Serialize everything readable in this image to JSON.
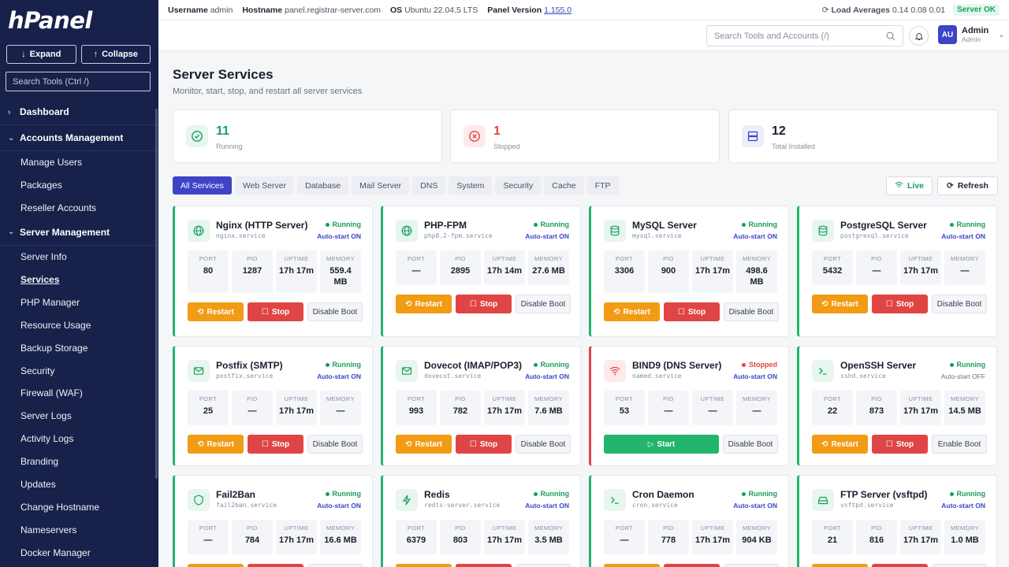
{
  "sidebar": {
    "logo": "hPanel",
    "expand_label": "Expand",
    "collapse_label": "Collapse",
    "search_placeholder": "Search Tools (Ctrl /)",
    "groups": [
      {
        "label": "Dashboard",
        "expanded": false
      },
      {
        "label": "Accounts Management",
        "expanded": true
      },
      {
        "label": "Server Management",
        "expanded": true
      }
    ],
    "accounts_items": [
      "Manage Users",
      "Packages",
      "Reseller Accounts"
    ],
    "server_items": [
      "Server Info",
      "Services",
      "PHP Manager",
      "Resource Usage",
      "Backup Storage",
      "Security",
      "Firewall (WAF)",
      "Server Logs",
      "Activity Logs",
      "Branding",
      "Updates",
      "Change Hostname",
      "Nameservers",
      "Docker Manager"
    ],
    "active_item": "Services"
  },
  "topbar": {
    "username_label": "Username",
    "username": "admin",
    "hostname_label": "Hostname",
    "hostname": "panel.registrar-server.com",
    "os_label": "OS",
    "os": "Ubuntu 22.04.5 LTS",
    "version_label": "Panel Version",
    "version": "1.155.0",
    "load_label": "Load Averages",
    "load": "0.14 0.08 0.01",
    "server_status": "Server OK"
  },
  "header": {
    "search_placeholder": "Search Tools and Accounts (/)",
    "avatar": "AU",
    "user_name": "Admin",
    "user_role": "Admin"
  },
  "page": {
    "title": "Server Services",
    "subtitle": "Monitor, start, stop, and restart all server services"
  },
  "stats": [
    {
      "value": "11",
      "label": "Running",
      "color": "#19a05a"
    },
    {
      "value": "1",
      "label": "Stopped",
      "color": "#e04545"
    },
    {
      "value": "12",
      "label": "Total Installed",
      "color": "#1a1f2e"
    }
  ],
  "filters": [
    "All Services",
    "Web Server",
    "Database",
    "Mail Server",
    "DNS",
    "System",
    "Security",
    "Cache",
    "FTP"
  ],
  "live_label": "Live",
  "refresh_label": "Refresh",
  "metric_labels": {
    "port": "PORT",
    "pid": "PID",
    "uptime": "UPTIME",
    "memory": "MEMORY"
  },
  "action_labels": {
    "restart": "Restart",
    "stop": "Stop",
    "start": "Start",
    "disable_boot": "Disable Boot",
    "enable_boot": "Enable Boot"
  },
  "services": [
    {
      "name": "Nginx (HTTP Server)",
      "unit": "nginx.service",
      "status": "Running",
      "autostart": "Auto-start ON",
      "icon": "globe-icon",
      "port": "80",
      "pid": "1287",
      "uptime": "17h 17m",
      "memory": "559.4 MB"
    },
    {
      "name": "PHP-FPM",
      "unit": "php8.2-fpm.service",
      "status": "Running",
      "autostart": "Auto-start ON",
      "icon": "globe-icon",
      "port": "—",
      "pid": "2895",
      "uptime": "17h 14m",
      "memory": "27.6 MB"
    },
    {
      "name": "MySQL Server",
      "unit": "mysql.service",
      "status": "Running",
      "autostart": "Auto-start ON",
      "icon": "database-icon",
      "port": "3306",
      "pid": "900",
      "uptime": "17h 17m",
      "memory": "498.6 MB"
    },
    {
      "name": "PostgreSQL Server",
      "unit": "postgresql.service",
      "status": "Running",
      "autostart": "Auto-start ON",
      "icon": "database-icon",
      "port": "5432",
      "pid": "—",
      "uptime": "17h 17m",
      "memory": "—"
    },
    {
      "name": "Postfix (SMTP)",
      "unit": "postfix.service",
      "status": "Running",
      "autostart": "Auto-start ON",
      "icon": "mail-icon",
      "port": "25",
      "pid": "—",
      "uptime": "17h 17m",
      "memory": "—"
    },
    {
      "name": "Dovecot (IMAP/POP3)",
      "unit": "dovecot.service",
      "status": "Running",
      "autostart": "Auto-start ON",
      "icon": "mail-icon",
      "port": "993",
      "pid": "782",
      "uptime": "17h 17m",
      "memory": "7.6 MB"
    },
    {
      "name": "BIND9 (DNS Server)",
      "unit": "named.service",
      "status": "Stopped",
      "autostart": "Auto-start ON",
      "icon": "wifi-icon",
      "port": "53",
      "pid": "—",
      "uptime": "—",
      "memory": "—"
    },
    {
      "name": "OpenSSH Server",
      "unit": "sshd.service",
      "status": "Running",
      "autostart": "Auto-start OFF",
      "icon": "terminal-icon",
      "port": "22",
      "pid": "873",
      "uptime": "17h 17m",
      "memory": "14.5 MB"
    },
    {
      "name": "Fail2Ban",
      "unit": "fail2ban.service",
      "status": "Running",
      "autostart": "Auto-start ON",
      "icon": "shield-icon",
      "port": "—",
      "pid": "784",
      "uptime": "17h 17m",
      "memory": "16.6 MB"
    },
    {
      "name": "Redis",
      "unit": "redis-server.service",
      "status": "Running",
      "autostart": "Auto-start ON",
      "icon": "bolt-icon",
      "port": "6379",
      "pid": "803",
      "uptime": "17h 17m",
      "memory": "3.5 MB"
    },
    {
      "name": "Cron Daemon",
      "unit": "cron.service",
      "status": "Running",
      "autostart": "Auto-start ON",
      "icon": "terminal-icon",
      "port": "—",
      "pid": "778",
      "uptime": "17h 17m",
      "memory": "904 KB"
    },
    {
      "name": "FTP Server (vsftpd)",
      "unit": "vsftpd.service",
      "status": "Running",
      "autostart": "Auto-start ON",
      "icon": "drive-icon",
      "port": "21",
      "pid": "816",
      "uptime": "17h 17m",
      "memory": "1.0 MB"
    }
  ]
}
